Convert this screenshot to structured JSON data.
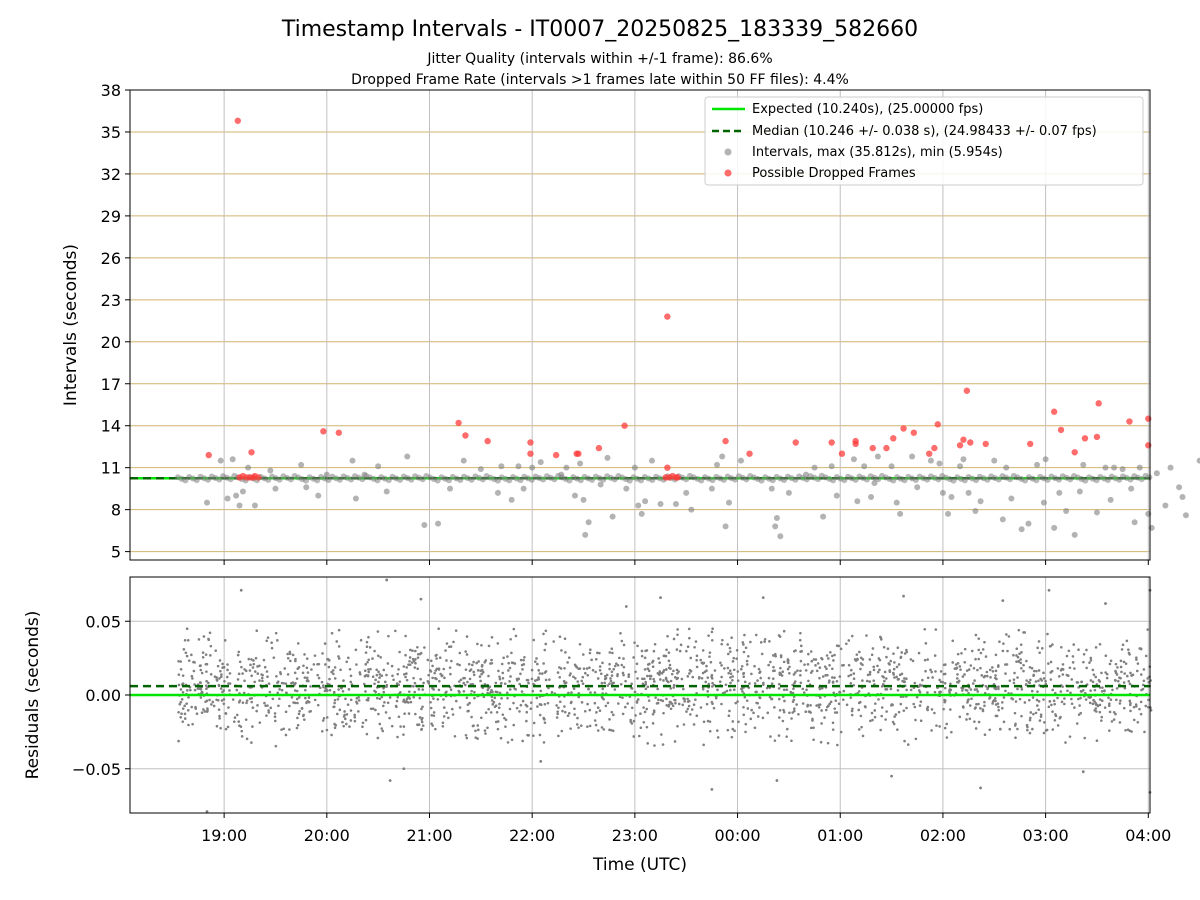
{
  "figure": {
    "title": "Timestamp Intervals - IT0007_20250825_183339_582660",
    "subtitle_1": "Jitter Quality (intervals within +/-1 frame): 86.6%",
    "subtitle_2": "Dropped Frame Rate (intervals >1 frames late within 50 FF files): 4.4%"
  },
  "colors": {
    "expected": "#00e600",
    "median": "#006400",
    "intervals": "#808080",
    "dropped": "#ff3b3b",
    "h_grid": "#d2b46e",
    "v_grid": "#c0c0c0"
  },
  "chart_data": [
    {
      "type": "scatter",
      "ylabel": "Intervals (seconds)",
      "ylim": [
        4.4,
        38
      ],
      "yticks": [
        "5",
        "8",
        "11",
        "14",
        "17",
        "20",
        "23",
        "26",
        "29",
        "32",
        "35",
        "38"
      ],
      "x_time_range": [
        "18:05",
        "04:01"
      ],
      "grid": "on",
      "legend_position": "top-right",
      "legend": [
        "Expected (10.240s), (25.00000 fps)",
        "Median (10.246 +/- 0.038 s), (24.98433 +/- 0.07 fps)",
        "Intervals, max (35.812s), min (5.954s)",
        "Possible Dropped Frames"
      ],
      "series": [
        {
          "name": "Expected (10.240s), (25.00000 fps)",
          "kind": "hline",
          "y": 10.24
        },
        {
          "name": "Median (10.246 +/- 0.038 s), (24.98433 +/- 0.07 fps)",
          "kind": "hline",
          "y": 10.246
        },
        {
          "name": "Intervals, max (35.812s), min (5.954s)",
          "kind": "scatter",
          "points": [
            [
              "18:50",
              8.5
            ],
            [
              "18:58",
              11.5
            ],
            [
              "19:02",
              8.8
            ],
            [
              "19:05",
              11.6
            ],
            [
              "19:07",
              9.0
            ],
            [
              "19:09",
              8.3
            ],
            [
              "19:11",
              9.3
            ],
            [
              "19:14",
              11.0
            ],
            [
              "19:18",
              8.3
            ],
            [
              "19:27",
              10.8
            ],
            [
              "19:30",
              9.5
            ],
            [
              "19:45",
              11.2
            ],
            [
              "19:48",
              9.6
            ],
            [
              "19:55",
              9.0
            ],
            [
              "20:00",
              10.5
            ],
            [
              "20:15",
              11.5
            ],
            [
              "20:17",
              8.8
            ],
            [
              "20:22",
              10.5
            ],
            [
              "20:30",
              11.1
            ],
            [
              "20:35",
              9.3
            ],
            [
              "20:47",
              11.8
            ],
            [
              "20:57",
              6.9
            ],
            [
              "21:05",
              7.0
            ],
            [
              "21:12",
              9.5
            ],
            [
              "21:20",
              11.5
            ],
            [
              "21:30",
              10.9
            ],
            [
              "21:40",
              9.2
            ],
            [
              "21:42",
              11.1
            ],
            [
              "21:48",
              8.7
            ],
            [
              "21:52",
              11.1
            ],
            [
              "21:55",
              9.5
            ],
            [
              "22:00",
              11.0
            ],
            [
              "22:05",
              11.4
            ],
            [
              "22:17",
              10.5
            ],
            [
              "22:20",
              11.0
            ],
            [
              "22:25",
              9.0
            ],
            [
              "22:28",
              11.3
            ],
            [
              "22:30",
              8.7
            ],
            [
              "22:31",
              6.2
            ],
            [
              "22:33",
              7.1
            ],
            [
              "22:40",
              9.8
            ],
            [
              "22:44",
              11.7
            ],
            [
              "22:47",
              7.5
            ],
            [
              "22:55",
              9.5
            ],
            [
              "23:00",
              11.0
            ],
            [
              "23:02",
              8.3
            ],
            [
              "23:04",
              7.7
            ],
            [
              "23:06",
              8.6
            ],
            [
              "23:10",
              11.5
            ],
            [
              "23:15",
              8.4
            ],
            [
              "23:24",
              8.4
            ],
            [
              "23:30",
              9.2
            ],
            [
              "23:33",
              8.0
            ],
            [
              "23:45",
              9.5
            ],
            [
              "23:48",
              11.2
            ],
            [
              "23:51",
              11.8
            ],
            [
              "23:53",
              6.8
            ],
            [
              "23:55",
              8.5
            ],
            [
              "00:02",
              11.5
            ],
            [
              "00:20",
              9.5
            ],
            [
              "00:22",
              6.8
            ],
            [
              "00:23",
              7.4
            ],
            [
              "00:25",
              6.1
            ],
            [
              "00:30",
              9.2
            ],
            [
              "00:40",
              10.5
            ],
            [
              "00:45",
              11.0
            ],
            [
              "00:50",
              7.5
            ],
            [
              "00:55",
              11.1
            ],
            [
              "00:58",
              9.0
            ],
            [
              "01:08",
              11.6
            ],
            [
              "01:10",
              8.6
            ],
            [
              "01:14",
              11.1
            ],
            [
              "01:18",
              8.9
            ],
            [
              "01:20",
              9.9
            ],
            [
              "01:22",
              11.8
            ],
            [
              "01:30",
              11.1
            ],
            [
              "01:33",
              8.5
            ],
            [
              "01:35",
              7.7
            ],
            [
              "01:42",
              11.8
            ],
            [
              "01:45",
              9.6
            ],
            [
              "01:53",
              11.5
            ],
            [
              "01:58",
              11.3
            ],
            [
              "02:00",
              9.2
            ],
            [
              "02:03",
              7.7
            ],
            [
              "02:05",
              8.9
            ],
            [
              "02:10",
              11.1
            ],
            [
              "02:12",
              11.6
            ],
            [
              "02:15",
              9.2
            ],
            [
              "02:19",
              7.9
            ],
            [
              "02:22",
              8.6
            ],
            [
              "02:30",
              11.5
            ],
            [
              "02:35",
              7.3
            ],
            [
              "02:37",
              11.0
            ],
            [
              "02:40",
              8.8
            ],
            [
              "02:46",
              6.6
            ],
            [
              "02:50",
              7.0
            ],
            [
              "02:55",
              11.2
            ],
            [
              "02:59",
              8.5
            ],
            [
              "03:00",
              11.6
            ],
            [
              "03:05",
              6.7
            ],
            [
              "03:08",
              9.2
            ],
            [
              "03:12",
              7.9
            ],
            [
              "03:17",
              6.2
            ],
            [
              "03:20",
              9.3
            ],
            [
              "03:22",
              11.2
            ],
            [
              "03:30",
              7.8
            ],
            [
              "03:35",
              11.0
            ],
            [
              "03:38",
              8.7
            ],
            [
              "03:40",
              11.0
            ],
            [
              "03:45",
              10.9
            ],
            [
              "03:50",
              9.5
            ],
            [
              "03:52",
              7.1
            ],
            [
              "03:55",
              11.0
            ],
            [
              "04:00",
              7.7
            ],
            [
              "04:02",
              6.7
            ],
            [
              "04:05",
              10.6
            ],
            [
              "04:10",
              8.3
            ],
            [
              "04:13",
              11.0
            ],
            [
              "04:18",
              9.6
            ],
            [
              "04:20",
              8.9
            ],
            [
              "04:22",
              7.6
            ],
            [
              "04:30",
              11.5
            ],
            [
              "04:35",
              6.1
            ],
            [
              "04:38",
              8.5
            ],
            [
              "04:40",
              11.8
            ],
            [
              "04:50",
              5.95
            ],
            [
              "04:55",
              7.8
            ],
            [
              "05:00",
              11.3
            ]
          ]
        },
        {
          "name": "Possible Dropped Frames",
          "kind": "scatter",
          "points": [
            [
              "18:51",
              11.9
            ],
            [
              "19:08",
              35.8
            ],
            [
              "19:09",
              10.3
            ],
            [
              "19:11",
              10.4
            ],
            [
              "19:13",
              10.3
            ],
            [
              "19:15",
              10.3
            ],
            [
              "19:16",
              12.1
            ],
            [
              "19:17",
              10.3
            ],
            [
              "19:18",
              10.4
            ],
            [
              "19:20",
              10.3
            ],
            [
              "19:58",
              13.6
            ],
            [
              "20:07",
              13.5
            ],
            [
              "21:17",
              14.2
            ],
            [
              "21:21",
              13.3
            ],
            [
              "21:34",
              12.9
            ],
            [
              "21:59",
              12.8
            ],
            [
              "21:59",
              12.0
            ],
            [
              "22:14",
              11.9
            ],
            [
              "22:26",
              12.0
            ],
            [
              "22:27",
              12.0
            ],
            [
              "22:39",
              12.4
            ],
            [
              "22:54",
              14.0
            ],
            [
              "23:19",
              21.8
            ],
            [
              "23:19",
              11.0
            ],
            [
              "23:18",
              10.3
            ],
            [
              "23:20",
              10.3
            ],
            [
              "23:22",
              10.4
            ],
            [
              "23:24",
              10.3
            ],
            [
              "23:25",
              10.3
            ],
            [
              "23:53",
              12.9
            ],
            [
              "00:07",
              12.0
            ],
            [
              "00:34",
              12.8
            ],
            [
              "00:55",
              12.8
            ],
            [
              "01:01",
              12.0
            ],
            [
              "01:09",
              12.7
            ],
            [
              "01:09",
              12.9
            ],
            [
              "01:19",
              12.4
            ],
            [
              "01:27",
              12.4
            ],
            [
              "01:31",
              13.1
            ],
            [
              "01:37",
              13.8
            ],
            [
              "01:43",
              13.5
            ],
            [
              "01:52",
              12.0
            ],
            [
              "01:55",
              12.4
            ],
            [
              "01:57",
              14.1
            ],
            [
              "02:10",
              12.6
            ],
            [
              "02:12",
              13.0
            ],
            [
              "02:14",
              16.5
            ],
            [
              "02:16",
              12.8
            ],
            [
              "02:25",
              12.7
            ],
            [
              "02:51",
              12.7
            ],
            [
              "03:05",
              15.0
            ],
            [
              "03:09",
              13.7
            ],
            [
              "03:17",
              12.1
            ],
            [
              "03:23",
              13.1
            ],
            [
              "03:30",
              13.2
            ],
            [
              "03:31",
              15.6
            ],
            [
              "03:49",
              14.3
            ],
            [
              "04:00",
              12.6
            ],
            [
              "04:00",
              14.5
            ]
          ]
        }
      ]
    },
    {
      "type": "scatter",
      "xlabel": "Time (UTC)",
      "ylabel": "Residuals (seconds)",
      "ylim": [
        -0.08,
        0.08
      ],
      "yticks": [
        "−0.05",
        "0.00",
        "0.05"
      ],
      "xticks": [
        "19:00",
        "20:00",
        "21:00",
        "22:00",
        "23:00",
        "00:00",
        "01:00",
        "02:00",
        "03:00",
        "04:00"
      ],
      "x_time_range": [
        "18:05",
        "04:01"
      ],
      "grid": "on",
      "series": [
        {
          "name": "Expected (10.240s), (25.00000 fps)",
          "kind": "hline",
          "y": 0.0
        },
        {
          "name": "Median (10.246 +/- 0.038 s), (24.98433 +/- 0.07 fps)",
          "kind": "hline",
          "y": 0.006
        },
        {
          "name": "Residuals",
          "kind": "scatter_dense",
          "x_start": "18:33",
          "x_end": "04:02",
          "count": 2300,
          "center": 0.006,
          "spread": 0.02,
          "points": [
            [
              "19:10",
              0.071
            ],
            [
              "18:50",
              -0.079
            ],
            [
              "20:35",
              0.078
            ],
            [
              "20:37",
              -0.058
            ],
            [
              "20:45",
              -0.05
            ],
            [
              "20:55",
              0.065
            ],
            [
              "22:05",
              -0.045
            ],
            [
              "22:55",
              0.06
            ],
            [
              "23:15",
              0.066
            ],
            [
              "23:45",
              -0.064
            ],
            [
              "00:15",
              0.066
            ],
            [
              "00:23",
              -0.058
            ],
            [
              "01:30",
              -0.055
            ],
            [
              "01:37",
              0.067
            ],
            [
              "02:22",
              -0.063
            ],
            [
              "02:35",
              0.064
            ],
            [
              "03:02",
              0.071
            ],
            [
              "03:22",
              -0.052
            ],
            [
              "03:35",
              0.062
            ],
            [
              "04:01",
              0.071
            ],
            [
              "04:01",
              -0.066
            ]
          ]
        }
      ]
    }
  ]
}
